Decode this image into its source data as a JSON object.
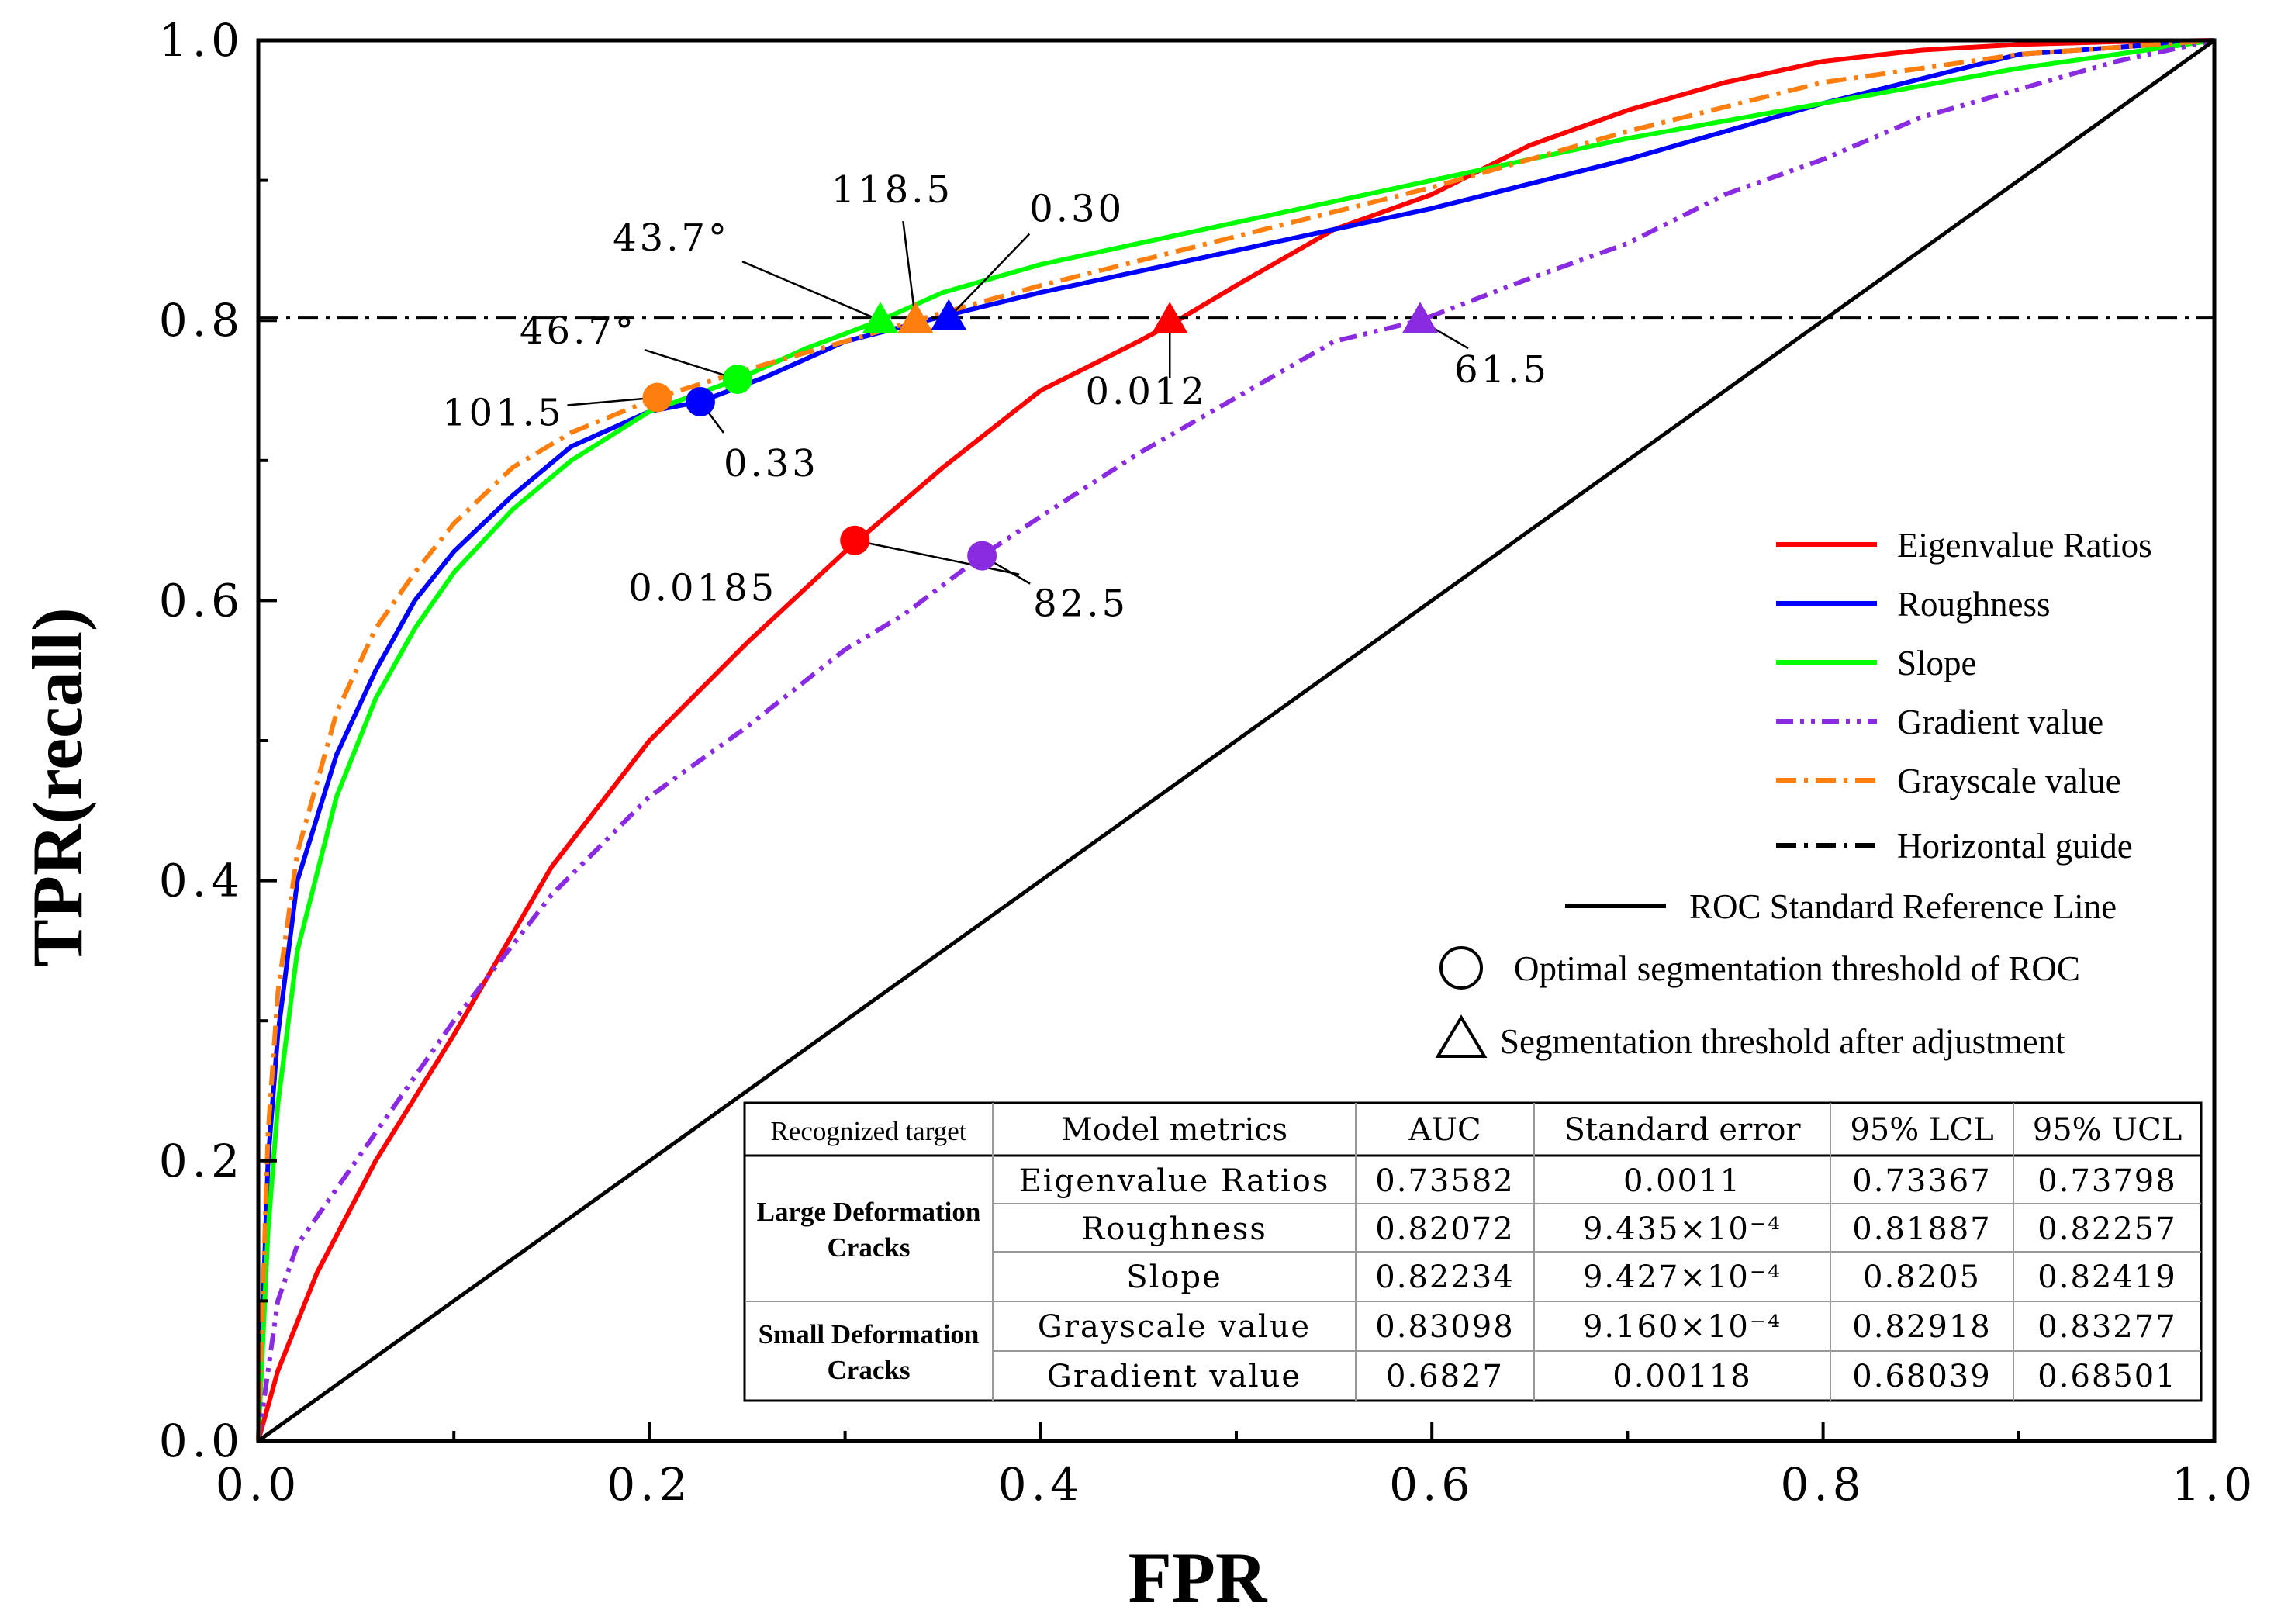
{
  "chart_data": {
    "type": "line",
    "xlabel": "FPR",
    "ylabel": "TPR(recall)",
    "xlim": [
      0,
      1
    ],
    "ylim": [
      0,
      1
    ],
    "x_ticks": [
      "0.0",
      "0.2",
      "0.4",
      "0.6",
      "0.8",
      "1.0"
    ],
    "y_ticks": [
      "0.0",
      "0.2",
      "0.4",
      "0.6",
      "0.8",
      "1.0"
    ],
    "grid": false,
    "legend_position": "right",
    "series": [
      {
        "name": "Eigenvalue  Ratios",
        "color": "#ff0000",
        "style": "solid",
        "x": [
          0,
          0.01,
          0.03,
          0.06,
          0.1,
          0.15,
          0.2,
          0.25,
          0.3,
          0.35,
          0.4,
          0.45,
          0.47,
          0.5,
          0.55,
          0.6,
          0.65,
          0.7,
          0.75,
          0.8,
          0.85,
          0.9,
          0.95,
          1.0
        ],
        "y": [
          0,
          0.05,
          0.12,
          0.2,
          0.29,
          0.41,
          0.5,
          0.57,
          0.635,
          0.695,
          0.75,
          0.785,
          0.8,
          0.825,
          0.865,
          0.89,
          0.925,
          0.95,
          0.97,
          0.985,
          0.993,
          0.997,
          0.999,
          1.0
        ]
      },
      {
        "name": "Roughness",
        "color": "#0000ff",
        "style": "solid",
        "x": [
          0,
          0.005,
          0.01,
          0.02,
          0.04,
          0.06,
          0.08,
          0.1,
          0.13,
          0.16,
          0.2,
          0.226,
          0.26,
          0.3,
          0.353,
          0.4,
          0.5,
          0.6,
          0.7,
          0.8,
          0.9,
          1.0
        ],
        "y": [
          0,
          0.2,
          0.29,
          0.4,
          0.49,
          0.55,
          0.6,
          0.635,
          0.675,
          0.71,
          0.735,
          0.742,
          0.76,
          0.785,
          0.804,
          0.82,
          0.85,
          0.88,
          0.915,
          0.955,
          0.99,
          1.0
        ]
      },
      {
        "name": "Slope",
        "color": "#00ff00",
        "style": "solid",
        "x": [
          0,
          0.005,
          0.01,
          0.02,
          0.04,
          0.06,
          0.08,
          0.1,
          0.13,
          0.16,
          0.2,
          0.245,
          0.28,
          0.318,
          0.35,
          0.4,
          0.5,
          0.6,
          0.7,
          0.8,
          0.9,
          1.0
        ],
        "y": [
          0,
          0.15,
          0.24,
          0.35,
          0.46,
          0.53,
          0.58,
          0.62,
          0.665,
          0.7,
          0.735,
          0.758,
          0.78,
          0.8,
          0.82,
          0.84,
          0.87,
          0.9,
          0.93,
          0.955,
          0.98,
          1.0
        ]
      },
      {
        "name": "Gradient value",
        "color": "#8a2be2",
        "style": "dash-dot-dot",
        "x": [
          0,
          0.01,
          0.02,
          0.05,
          0.1,
          0.15,
          0.2,
          0.25,
          0.3,
          0.33,
          0.37,
          0.4,
          0.45,
          0.5,
          0.55,
          0.594,
          0.65,
          0.7,
          0.75,
          0.8,
          0.85,
          0.9,
          0.95,
          1.0
        ],
        "y": [
          0,
          0.1,
          0.14,
          0.2,
          0.3,
          0.39,
          0.46,
          0.51,
          0.565,
          0.59,
          0.632,
          0.66,
          0.705,
          0.745,
          0.785,
          0.8,
          0.83,
          0.855,
          0.89,
          0.915,
          0.945,
          0.965,
          0.985,
          1.0
        ]
      },
      {
        "name": "Grayscale value",
        "color": "#ff7f0e",
        "style": "dash-dot",
        "x": [
          0,
          0.005,
          0.01,
          0.02,
          0.04,
          0.06,
          0.08,
          0.1,
          0.13,
          0.16,
          0.204,
          0.25,
          0.3,
          0.336,
          0.4,
          0.5,
          0.6,
          0.7,
          0.8,
          0.9,
          1.0
        ],
        "y": [
          0,
          0.22,
          0.32,
          0.42,
          0.52,
          0.58,
          0.62,
          0.655,
          0.695,
          0.72,
          0.745,
          0.765,
          0.785,
          0.8,
          0.825,
          0.86,
          0.895,
          0.935,
          0.97,
          0.99,
          1.0
        ]
      },
      {
        "name": "Horizontal guide",
        "color": "#000000",
        "style": "dash-dot",
        "x": [
          0,
          1
        ],
        "y": [
          0.802,
          0.802
        ]
      },
      {
        "name": "ROC Standard Reference Line",
        "color": "#000000",
        "style": "solid",
        "x": [
          0,
          1
        ],
        "y": [
          0,
          1
        ]
      }
    ],
    "optimal_points": [
      {
        "series": "Eigenvalue  Ratios",
        "x": 0.305,
        "y": 0.643,
        "label": "0.0185",
        "color": "#ff0000"
      },
      {
        "series": "Roughness",
        "x": 0.226,
        "y": 0.742,
        "label": "0.33",
        "color": "#0000ff"
      },
      {
        "series": "Slope",
        "x": 0.245,
        "y": 0.758,
        "label": "46.7°",
        "color": "#00ff00"
      },
      {
        "series": "Gradient value",
        "x": 0.37,
        "y": 0.632,
        "label": "82.5",
        "color": "#8a2be2"
      },
      {
        "series": "Grayscale value",
        "x": 0.204,
        "y": 0.745,
        "label": "101.5",
        "color": "#ff7f0e"
      }
    ],
    "adjusted_points": [
      {
        "series": "Eigenvalue  Ratios",
        "x": 0.466,
        "y": 0.8,
        "label": "0.012",
        "color": "#ff0000"
      },
      {
        "series": "Roughness",
        "x": 0.353,
        "y": 0.802,
        "label": "0.30",
        "color": "#0000ff"
      },
      {
        "series": "Slope",
        "x": 0.318,
        "y": 0.8,
        "label": "43.7°",
        "color": "#00ff00"
      },
      {
        "series": "Gradient value",
        "x": 0.594,
        "y": 0.8,
        "label": "61.5",
        "color": "#8a2be2"
      },
      {
        "series": "Grayscale value",
        "x": 0.336,
        "y": 0.8,
        "label": "118.5",
        "color": "#ff7f0e"
      }
    ],
    "legend_markers": [
      {
        "shape": "circle",
        "label": "Optimal segmentation threshold of ROC"
      },
      {
        "shape": "triangle",
        "label": "Segmentation threshold  after adjustment"
      }
    ],
    "table": {
      "headers": [
        "Recognized target",
        "Model metrics",
        "AUC",
        "Standard error",
        "95% LCL",
        "95% UCL"
      ],
      "groups": [
        {
          "label": [
            "Large Deformation",
            "Cracks"
          ],
          "rows": [
            0,
            1,
            2
          ]
        },
        {
          "label": [
            "Small Deformation",
            "Cracks"
          ],
          "rows": [
            3,
            4
          ]
        }
      ],
      "rows": [
        [
          "Eigenvalue Ratios",
          "0.73582",
          "0.0011",
          "0.73367",
          "0.73798"
        ],
        [
          "Roughness",
          "0.82072",
          "9.435×10⁻⁴",
          "0.81887",
          "0.82257"
        ],
        [
          "Slope",
          "0.82234",
          "9.427×10⁻⁴",
          "0.8205",
          "0.82419"
        ],
        [
          "Grayscale value",
          "0.83098",
          "9.160×10⁻⁴",
          "0.82918",
          "0.83277"
        ],
        [
          "Gradient value",
          "0.6827",
          "0.00118",
          "0.68039",
          "0.68501"
        ]
      ]
    }
  }
}
